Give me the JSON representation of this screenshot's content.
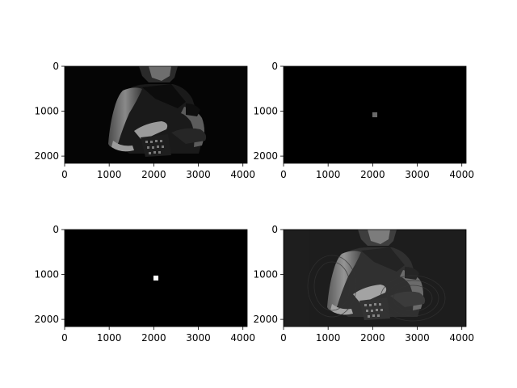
{
  "chart_data": [
    {
      "type": "image",
      "image_kind": "grayscale photo of a person in a one-shoulder top holding a phone",
      "xlim": [
        0,
        4096
      ],
      "ylim": [
        2160,
        0
      ],
      "xticks": [
        0,
        1000,
        2000,
        3000,
        4000
      ],
      "yticks": [
        0,
        1000,
        2000
      ],
      "features": []
    },
    {
      "type": "image",
      "image_kind": "nearly black field with small gray square near center",
      "xlim": [
        0,
        4096
      ],
      "ylim": [
        2160,
        0
      ],
      "xticks": [
        0,
        1000,
        2000,
        3000,
        4000
      ],
      "yticks": [
        0,
        1000,
        2000
      ],
      "features": [
        {
          "kind": "square",
          "x": 2048,
          "y": 1080,
          "size": 110,
          "color": "#6a6a6a"
        }
      ]
    },
    {
      "type": "image",
      "image_kind": "black field with small white square at center",
      "xlim": [
        0,
        4096
      ],
      "ylim": [
        2160,
        0
      ],
      "xticks": [
        0,
        1000,
        2000,
        3000,
        4000
      ],
      "yticks": [
        0,
        1000,
        2000
      ],
      "features": [
        {
          "kind": "square",
          "x": 2048,
          "y": 1080,
          "size": 110,
          "color": "#ffffff"
        }
      ]
    },
    {
      "type": "image",
      "image_kind": "reconstructed grayscale photo with ringing artifacts",
      "xlim": [
        0,
        4096
      ],
      "ylim": [
        2160,
        0
      ],
      "xticks": [
        0,
        1000,
        2000,
        3000,
        4000
      ],
      "yticks": [
        0,
        1000,
        2000
      ],
      "features": []
    }
  ]
}
